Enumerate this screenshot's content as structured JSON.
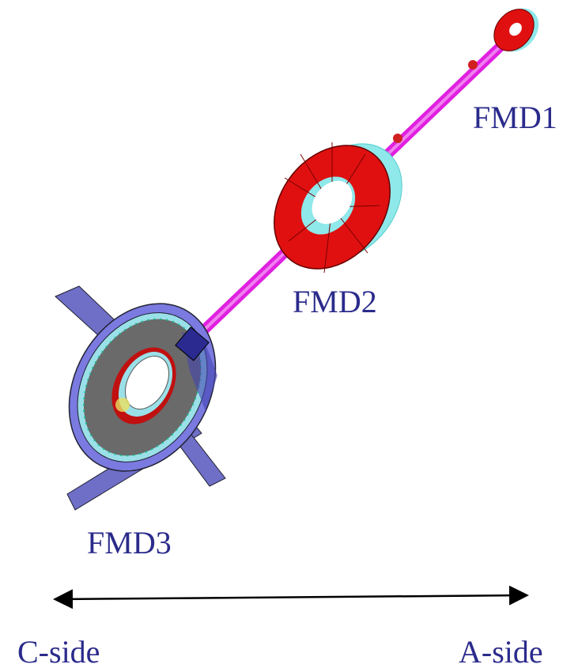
{
  "labels": {
    "fmd1": "FMD1",
    "fmd2": "FMD2",
    "fmd3": "FMD3"
  },
  "axis": {
    "left": "C-side",
    "right": "A-side"
  }
}
